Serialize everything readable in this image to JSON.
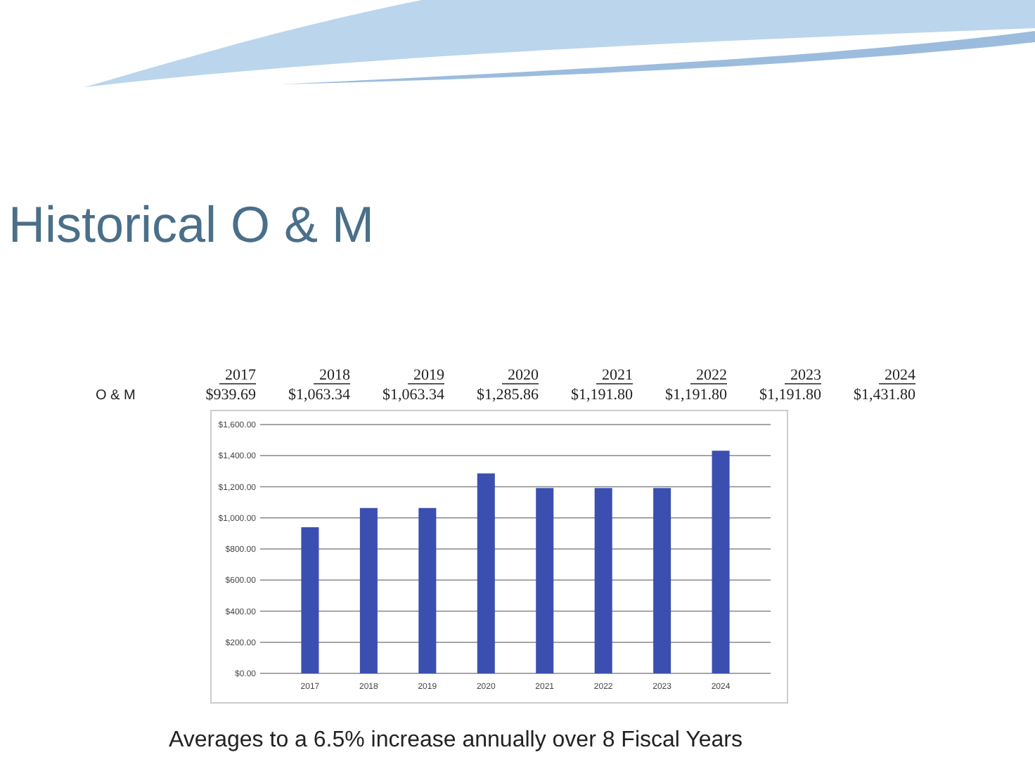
{
  "chart_data": {
    "type": "bar",
    "title": "Historical O & M",
    "categories": [
      "2017",
      "2018",
      "2019",
      "2020",
      "2021",
      "2022",
      "2023",
      "2024"
    ],
    "series": [
      {
        "name": "O & M",
        "color": "#3a4fb0",
        "values": [
          939.69,
          1063.34,
          1063.34,
          1285.86,
          1191.8,
          1191.8,
          1191.8,
          1431.8
        ]
      }
    ],
    "value_labels": [
      "$939.69",
      "$1,063.34",
      "$1,063.34",
      "$1,285.86",
      "$1,191.80",
      "$1,191.80",
      "$1,191.80",
      "$1,431.80"
    ],
    "ylim": [
      0,
      1600
    ],
    "yticks": [
      {
        "value": 0,
        "label": "$0.00"
      },
      {
        "value": 200,
        "label": "$200.00"
      },
      {
        "value": 400,
        "label": "$400.00"
      },
      {
        "value": 600,
        "label": "$600.00"
      },
      {
        "value": 800,
        "label": "$800.00"
      },
      {
        "value": 1000,
        "label": "$1,000.00"
      },
      {
        "value": 1200,
        "label": "$1,200.00"
      },
      {
        "value": 1400,
        "label": "$1,400.00"
      },
      {
        "value": 1600,
        "label": "$1,600.00"
      }
    ],
    "grid": "y",
    "annotations": [
      "Averages to a 6.5% increase annually over 8 Fiscal Years"
    ]
  }
}
